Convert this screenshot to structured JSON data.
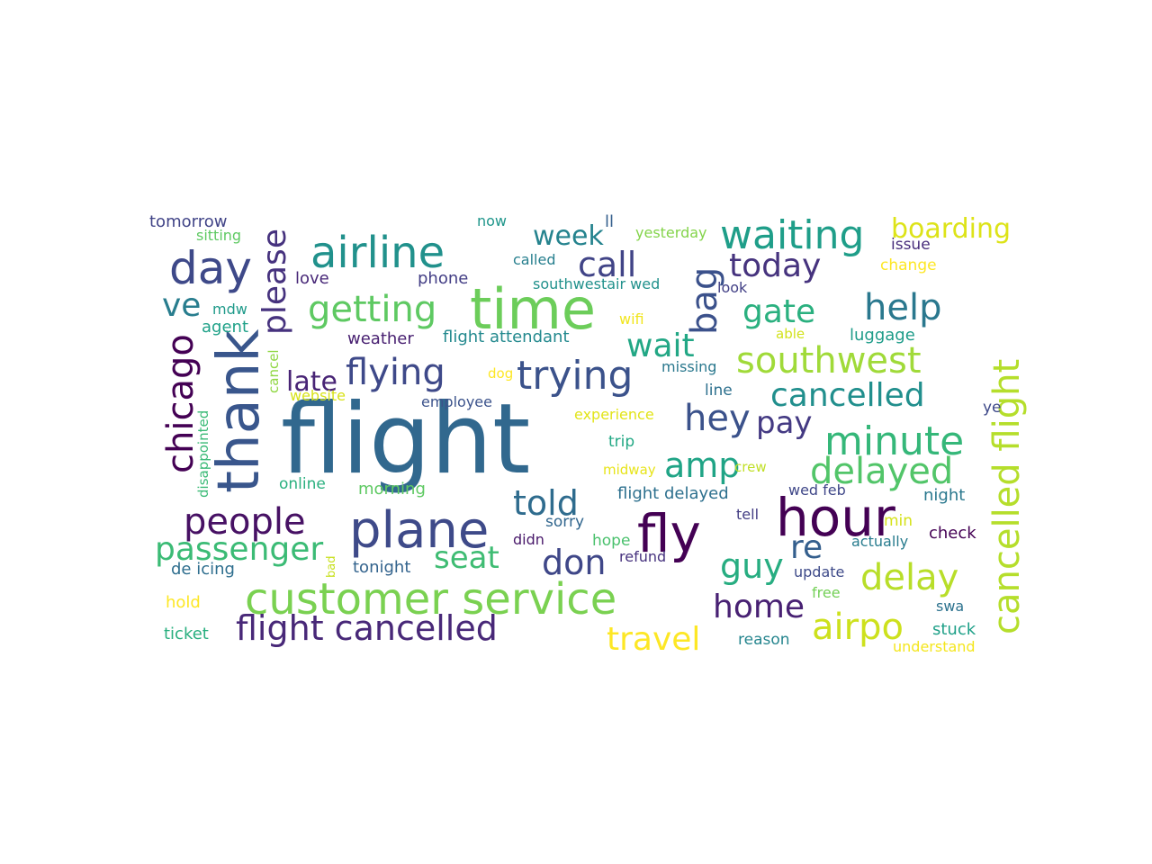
{
  "word_cloud": {
    "words": [
      {
        "text": "flight",
        "color": "#31688e"
      },
      {
        "text": "time",
        "color": "#6ccd5a"
      },
      {
        "text": "hour",
        "color": "#440154"
      },
      {
        "text": "customer service",
        "color": "#7ad151"
      },
      {
        "text": "airline",
        "color": "#21918c"
      },
      {
        "text": "thank",
        "color": "#39568c"
      },
      {
        "text": "plane",
        "color": "#3e4a89"
      },
      {
        "text": "fly",
        "color": "#440154"
      },
      {
        "text": "day",
        "color": "#3e4989"
      },
      {
        "text": "waiting",
        "color": "#1f9e89"
      },
      {
        "text": "minute",
        "color": "#35b779"
      },
      {
        "text": "cancelled flight",
        "color": "#b5de2b"
      },
      {
        "text": "flight cancelled",
        "color": "#482878"
      },
      {
        "text": "people",
        "color": "#471164"
      },
      {
        "text": "trying",
        "color": "#3b528b"
      },
      {
        "text": "delayed",
        "color": "#52c569"
      },
      {
        "text": "southwest",
        "color": "#a0da39"
      },
      {
        "text": "airpo",
        "color": "#cde11d"
      },
      {
        "text": "delay",
        "color": "#b8de29"
      },
      {
        "text": "flying",
        "color": "#3e4989"
      },
      {
        "text": "help",
        "color": "#2a788e"
      },
      {
        "text": "chicago",
        "color": "#440154"
      },
      {
        "text": "getting",
        "color": "#5ec962"
      },
      {
        "text": "cancelled",
        "color": "#218f8d"
      },
      {
        "text": "hey",
        "color": "#3b528b"
      },
      {
        "text": "today",
        "color": "#46337e"
      },
      {
        "text": "bag",
        "color": "#3b518b"
      },
      {
        "text": "call",
        "color": "#414487"
      },
      {
        "text": "please",
        "color": "#46327e"
      },
      {
        "text": "passenger",
        "color": "#3bbb75"
      },
      {
        "text": "told",
        "color": "#2f6c8e"
      },
      {
        "text": "travel",
        "color": "#fde725"
      },
      {
        "text": "amp",
        "color": "#20a486"
      },
      {
        "text": "home",
        "color": "#482173"
      },
      {
        "text": "gate",
        "color": "#2ab07f"
      },
      {
        "text": "don",
        "color": "#3f4788"
      },
      {
        "text": "guy",
        "color": "#27ad81"
      },
      {
        "text": "wait",
        "color": "#22a785"
      },
      {
        "text": "boarding",
        "color": "#dde318"
      },
      {
        "text": "re",
        "color": "#355f8d"
      },
      {
        "text": "seat",
        "color": "#3fbc73"
      },
      {
        "text": "ve",
        "color": "#287d8e"
      },
      {
        "text": "pay",
        "color": "#443a83"
      },
      {
        "text": "week",
        "color": "#25838e"
      },
      {
        "text": "late",
        "color": "#482475"
      },
      {
        "text": "tomorrow",
        "color": "#414487"
      },
      {
        "text": "sitting",
        "color": "#5ec962"
      },
      {
        "text": "now",
        "color": "#1f968b"
      },
      {
        "text": "ll",
        "color": "#355f8d"
      },
      {
        "text": "yesterday",
        "color": "#84d44b"
      },
      {
        "text": "issue",
        "color": "#472d7b"
      },
      {
        "text": "change",
        "color": "#fde725"
      },
      {
        "text": "love",
        "color": "#482878"
      },
      {
        "text": "phone",
        "color": "#433e85"
      },
      {
        "text": "called",
        "color": "#277f8e"
      },
      {
        "text": "southwestair wed",
        "color": "#21918c"
      },
      {
        "text": "look",
        "color": "#424086"
      },
      {
        "text": "mdw",
        "color": "#1f9a8a"
      },
      {
        "text": "agent",
        "color": "#1fa188"
      },
      {
        "text": "wifi",
        "color": "#f1e51d"
      },
      {
        "text": "able",
        "color": "#d2e21b"
      },
      {
        "text": "luggage",
        "color": "#1e9c89"
      },
      {
        "text": "weather",
        "color": "#482071"
      },
      {
        "text": "flight attendant",
        "color": "#23898e"
      },
      {
        "text": "missing",
        "color": "#2a788e"
      },
      {
        "text": "cancel",
        "color": "#90d743"
      },
      {
        "text": "website",
        "color": "#d8e219"
      },
      {
        "text": "dog",
        "color": "#fde725"
      },
      {
        "text": "line",
        "color": "#2d708e"
      },
      {
        "text": "employee",
        "color": "#3b528b"
      },
      {
        "text": "disappointed",
        "color": "#3aba76"
      },
      {
        "text": "experience",
        "color": "#e2e418"
      },
      {
        "text": "ye",
        "color": "#3e4989"
      },
      {
        "text": "trip",
        "color": "#22a884"
      },
      {
        "text": "midway",
        "color": "#e7e419"
      },
      {
        "text": "crew",
        "color": "#c0df25"
      },
      {
        "text": "online",
        "color": "#2ab07f"
      },
      {
        "text": "morning",
        "color": "#5ec962"
      },
      {
        "text": "flight delayed",
        "color": "#2d708e"
      },
      {
        "text": "wed feb",
        "color": "#3f4788"
      },
      {
        "text": "night",
        "color": "#2a788e"
      },
      {
        "text": "sorry",
        "color": "#31668e"
      },
      {
        "text": "tell",
        "color": "#433d84"
      },
      {
        "text": "min",
        "color": "#d5e21a"
      },
      {
        "text": "check",
        "color": "#440154"
      },
      {
        "text": "didn",
        "color": "#48186a"
      },
      {
        "text": "hope",
        "color": "#4ac16d"
      },
      {
        "text": "actually",
        "color": "#287c8e"
      },
      {
        "text": "de icing",
        "color": "#2e6e8e"
      },
      {
        "text": "bad",
        "color": "#c8e020"
      },
      {
        "text": "tonight",
        "color": "#33638d"
      },
      {
        "text": "refund",
        "color": "#46327e"
      },
      {
        "text": "update",
        "color": "#3e4a89"
      },
      {
        "text": "hold",
        "color": "#fde725"
      },
      {
        "text": "free",
        "color": "#73d056"
      },
      {
        "text": "swa",
        "color": "#2c728e"
      },
      {
        "text": "ticket",
        "color": "#29af7f"
      },
      {
        "text": "stuck",
        "color": "#1fa088"
      },
      {
        "text": "reason",
        "color": "#25858e"
      },
      {
        "text": "understand",
        "color": "#f4e61e"
      }
    ]
  }
}
